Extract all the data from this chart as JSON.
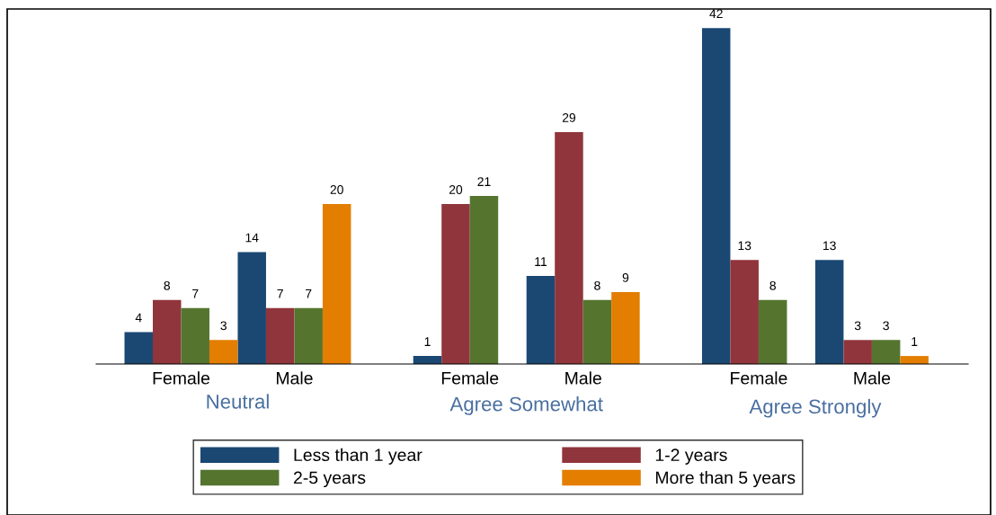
{
  "chart_data": {
    "type": "bar",
    "categories": [
      "Female",
      "Male",
      "Female",
      "Male",
      "Female",
      "Male"
    ],
    "series": [
      {
        "name": "Less than 1 year",
        "color": "#1a4873",
        "values": [
          4,
          14,
          1,
          11,
          42,
          13
        ]
      },
      {
        "name": "1-2 years",
        "color": "#90353b",
        "values": [
          8,
          7,
          20,
          29,
          13,
          3
        ]
      },
      {
        "name": "2-5 years",
        "color": "#55752f",
        "values": [
          7,
          7,
          21,
          8,
          8,
          3
        ]
      },
      {
        "name": "More than 5 years",
        "color": "#e37e00",
        "values": [
          3,
          20,
          null,
          9,
          null,
          1
        ]
      }
    ],
    "annotations": [
      "Neutral",
      "Agree Somewhat",
      "Agree Strongly"
    ],
    "data_labels": true,
    "legend": "bottom",
    "grid": false
  }
}
